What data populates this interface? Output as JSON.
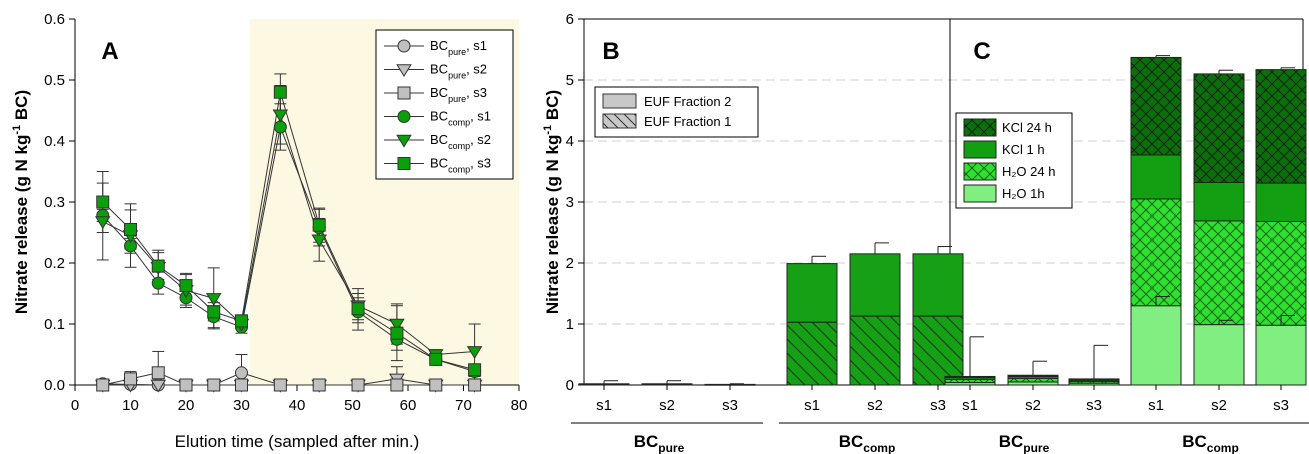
{
  "chart_data": [
    {
      "panel": "A",
      "type": "line",
      "ylabel": "Nitrate release (g N kg-1 BC)",
      "xlabel": "Elution time (sampled after min.)",
      "xlim": [
        0,
        80
      ],
      "ylim": [
        0,
        0.6
      ],
      "xticks": [
        0,
        10,
        20,
        30,
        40,
        50,
        60,
        70,
        80
      ],
      "yticks": [
        0.0,
        0.1,
        0.2,
        0.3,
        0.4,
        0.5,
        0.6
      ],
      "shaded_region_x": [
        31.5,
        80
      ],
      "x": [
        5,
        10,
        15,
        20,
        25,
        30,
        37,
        44,
        51,
        58,
        65,
        72
      ],
      "series": [
        {
          "name": "BCpure, s1",
          "base": "BC",
          "sub": "pure",
          "suffix": ", s1",
          "marker": "circle",
          "color": "#c0c0c0",
          "values": [
            0.002,
            0.001,
            0.0,
            0.0,
            0.0,
            0.02,
            0.0,
            0.0,
            0.0,
            0.0,
            0.0,
            0.0
          ],
          "err": [
            0.006,
            0.006,
            0.006,
            0.004,
            0.004,
            0.03,
            0.004,
            0.004,
            0.004,
            0.004,
            0.004,
            0.004
          ]
        },
        {
          "name": "BCpure, s2",
          "base": "BC",
          "sub": "pure",
          "suffix": ", s2",
          "marker": "triangle",
          "color": "#c0c0c0",
          "values": [
            0.0,
            0.0,
            0.0,
            0.0,
            0.0,
            0.0,
            0.0,
            0.0,
            0.0,
            0.01,
            0.0,
            0.0
          ],
          "err": [
            0.004,
            0.004,
            0.01,
            0.004,
            0.004,
            0.004,
            0.004,
            0.004,
            0.004,
            0.02,
            0.004,
            0.004
          ]
        },
        {
          "name": "BCpure, s3",
          "base": "BC",
          "sub": "pure",
          "suffix": ", s3",
          "marker": "square",
          "color": "#c0c0c0",
          "values": [
            0.0,
            0.01,
            0.02,
            0.0,
            0.0,
            0.0,
            0.0,
            0.0,
            0.0,
            0.0,
            0.0,
            0.0
          ],
          "err": [
            0.004,
            0.012,
            0.035,
            0.004,
            0.004,
            0.004,
            0.004,
            0.004,
            0.004,
            0.004,
            0.004,
            0.004
          ]
        },
        {
          "name": "BCcomp, s1",
          "base": "BC",
          "sub": "comp",
          "suffix": ", s1",
          "marker": "circle",
          "color": "#0aa00a",
          "values": [
            0.278,
            0.228,
            0.167,
            0.143,
            0.112,
            0.095,
            0.423,
            0.258,
            0.12,
            0.075,
            0.042,
            0.022
          ],
          "err": [
            0.01,
            0.012,
            0.018,
            0.012,
            0.018,
            0.01,
            0.038,
            0.03,
            0.03,
            0.018,
            0.008,
            0.008
          ]
        },
        {
          "name": "BCcomp, s2",
          "base": "BC",
          "sub": "comp",
          "suffix": ", s2",
          "marker": "triangle",
          "color": "#0aa00a",
          "values": [
            0.268,
            0.245,
            0.193,
            0.155,
            0.142,
            0.1,
            0.443,
            0.238,
            0.13,
            0.1,
            0.05,
            0.055
          ],
          "err": [
            0.063,
            0.052,
            0.028,
            0.028,
            0.05,
            0.008,
            0.048,
            0.035,
            0.028,
            0.033,
            0.008,
            0.045
          ]
        },
        {
          "name": "BCcomp, s3",
          "base": "BC",
          "sub": "comp",
          "suffix": ", s3",
          "marker": "square",
          "color": "#0aa00a",
          "values": [
            0.3,
            0.255,
            0.195,
            0.163,
            0.12,
            0.105,
            0.48,
            0.262,
            0.125,
            0.085,
            0.042,
            0.025
          ],
          "err": [
            0.05,
            0.032,
            0.022,
            0.018,
            0.015,
            0.01,
            0.03,
            0.028,
            0.018,
            0.045,
            0.005,
            0.005
          ]
        }
      ]
    },
    {
      "panel": "B",
      "type": "bar",
      "stacked": true,
      "ylabel": "Nitrate release (g N kg-1 BC)",
      "ylim": [
        0,
        6
      ],
      "yticks": [
        0,
        1,
        2,
        3,
        4,
        5,
        6
      ],
      "categories": [
        "s1",
        "s2",
        "s3",
        "s1",
        "s2",
        "s3"
      ],
      "groups": [
        {
          "base": "BC",
          "sub": "pure"
        },
        {
          "base": "BC",
          "sub": "comp"
        }
      ],
      "series": [
        {
          "name": "EUF Fraction 1",
          "pattern": "hatch",
          "values": [
            0.01,
            0.01,
            0.005,
            1.03,
            1.13,
            1.13
          ]
        },
        {
          "name": "EUF Fraction 2",
          "pattern": "solid",
          "values": [
            0.01,
            0.01,
            0.005,
            0.96,
            1.02,
            1.02
          ]
        }
      ],
      "error": [
        0.05,
        0.05,
        0.01,
        0.12,
        0.18,
        0.12
      ],
      "legend": [
        "EUF Fraction 2",
        "EUF Fraction 1"
      ]
    },
    {
      "panel": "C",
      "type": "bar",
      "stacked": true,
      "ylim": [
        0,
        6
      ],
      "categories": [
        "s1",
        "s2",
        "s3",
        "s1",
        "s2",
        "s3"
      ],
      "groups": [
        {
          "base": "BC",
          "sub": "pure"
        },
        {
          "base": "BC",
          "sub": "comp"
        }
      ],
      "series": [
        {
          "name": "H2O 1h",
          "label": "H₂O   1h",
          "pattern": "solid",
          "color": "#80ee80",
          "values": [
            0.04,
            0.05,
            0.03,
            1.3,
            0.99,
            0.98
          ]
        },
        {
          "name": "H2O 24 h",
          "label": "H₂O 24 h",
          "pattern": "cross",
          "color": "#30e030",
          "values": [
            0.05,
            0.06,
            0.03,
            1.75,
            1.7,
            1.7
          ]
        },
        {
          "name": "KCl 1 h",
          "label": "KCl   1 h",
          "pattern": "solid",
          "color": "#12a012",
          "values": [
            0.03,
            0.03,
            0.02,
            0.72,
            0.63,
            0.63
          ]
        },
        {
          "name": "KCl 24 h",
          "label": "KCl 24 h",
          "pattern": "cross",
          "color": "#0d6e0d",
          "values": [
            0.02,
            0.02,
            0.02,
            1.6,
            1.78,
            1.86
          ]
        }
      ],
      "error": [
        0.65,
        0.23,
        0.55,
        0.03,
        0.06,
        0.03
      ],
      "inner_error": [
        1.45,
        1.06,
        1.14
      ],
      "legend": [
        "KCl 24 h",
        "KCl   1 h",
        "H₂O 24 h",
        "H₂O   1h"
      ]
    }
  ]
}
